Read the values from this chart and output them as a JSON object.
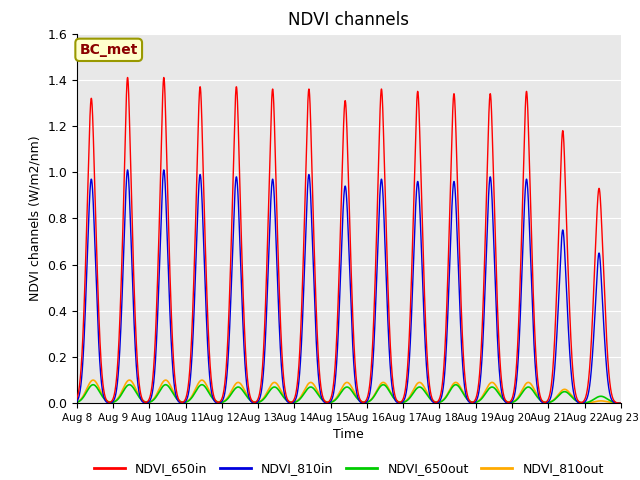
{
  "title": "NDVI channels",
  "xlabel": "Time",
  "ylabel": "NDVI channels (W/m2/nm)",
  "ylim": [
    0,
    1.6
  ],
  "background_color": "#e8e8e8",
  "plot_bg": "#d8d8d8",
  "annotation_text": "BC_met",
  "annotation_color": "#8b0000",
  "annotation_bg": "#ffffcc",
  "annotation_edge": "#999900",
  "colors": {
    "NDVI_650in": "#ff0000",
    "NDVI_810in": "#0000dd",
    "NDVI_650out": "#00cc00",
    "NDVI_810out": "#ffaa00"
  },
  "num_days": 15,
  "peaks_650in": [
    1.32,
    1.41,
    1.41,
    1.37,
    1.37,
    1.36,
    1.36,
    1.31,
    1.36,
    1.35,
    1.34,
    1.34,
    1.35,
    1.18,
    0.93
  ],
  "peaks_810in": [
    0.97,
    1.01,
    1.01,
    0.99,
    0.98,
    0.97,
    0.99,
    0.94,
    0.97,
    0.96,
    0.96,
    0.98,
    0.97,
    0.75,
    0.65
  ],
  "peaks_650out": [
    0.08,
    0.08,
    0.08,
    0.08,
    0.07,
    0.07,
    0.07,
    0.07,
    0.08,
    0.07,
    0.08,
    0.07,
    0.07,
    0.05,
    0.03
  ],
  "peaks_810out": [
    0.1,
    0.1,
    0.1,
    0.1,
    0.09,
    0.09,
    0.09,
    0.09,
    0.09,
    0.09,
    0.09,
    0.09,
    0.09,
    0.06,
    0.01
  ],
  "shoulder_650in": [
    1.15,
    1.15,
    1.15,
    1.15,
    1.15,
    1.15,
    1.15,
    1.15,
    1.15,
    1.15,
    1.15,
    1.15,
    1.15,
    1.0,
    0.85
  ],
  "shoulder_810in": [
    0.9,
    0.9,
    0.9,
    0.9,
    0.9,
    0.9,
    0.9,
    0.9,
    0.9,
    0.9,
    0.9,
    0.9,
    0.9,
    0.65,
    0.55
  ],
  "xtick_labels": [
    "Aug 8",
    "Aug 9",
    "Aug 10",
    "Aug 11",
    "Aug 12",
    "Aug 13",
    "Aug 14",
    "Aug 15",
    "Aug 16",
    "Aug 17",
    "Aug 18",
    "Aug 19",
    "Aug 20",
    "Aug 21",
    "Aug 22",
    "Aug 23"
  ]
}
